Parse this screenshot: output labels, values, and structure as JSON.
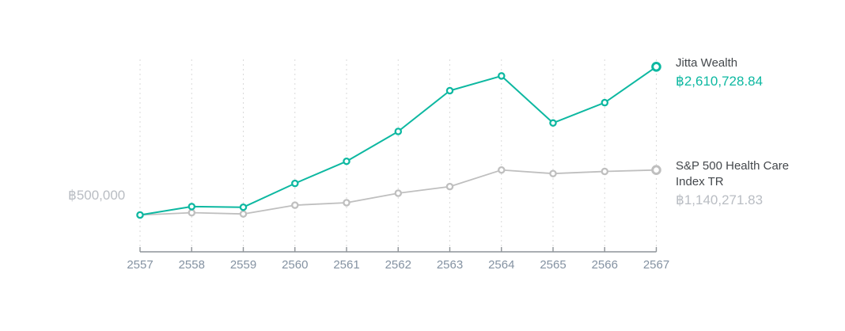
{
  "colors": {
    "accent_teal": "#0db8a1",
    "series_gray": "#bfbfbf",
    "muted_value_gray": "#b9bdc3",
    "grid_gray": "#dadada",
    "axis_gray": "#8e9398",
    "tick_label_gray": "#8492a2",
    "legend_name_gray": "#44484c"
  },
  "chart_data": {
    "type": "line",
    "title": "",
    "xlabel": "",
    "ylabel": "",
    "x_labels": [
      "2557",
      "2558",
      "2559",
      "2560",
      "2561",
      "2562",
      "2563",
      "2564",
      "2565",
      "2566",
      "2567"
    ],
    "y_baseline": {
      "label": "฿500,000",
      "value": 500000
    },
    "ylim": [
      0,
      2720000
    ],
    "grid": "vertical-dashed",
    "legend_position": "right",
    "series": [
      {
        "name": "Jitta Wealth",
        "color": "#0db8a1",
        "final_label": "฿2,610,728.84",
        "final_value": 2610728.84,
        "values": [
          500000,
          620000,
          610000,
          950000,
          1265000,
          1690000,
          2270000,
          2480000,
          1810000,
          2100000,
          2610728.84
        ]
      },
      {
        "name": "S&P 500 Health Care Index TR",
        "color": "#bfbfbf",
        "final_label": "฿1,140,271.83",
        "final_value": 1140271.83,
        "values": [
          500000,
          533000,
          515000,
          640000,
          675000,
          810000,
          905000,
          1140000,
          1090000,
          1120000,
          1140271.83
        ]
      }
    ]
  }
}
